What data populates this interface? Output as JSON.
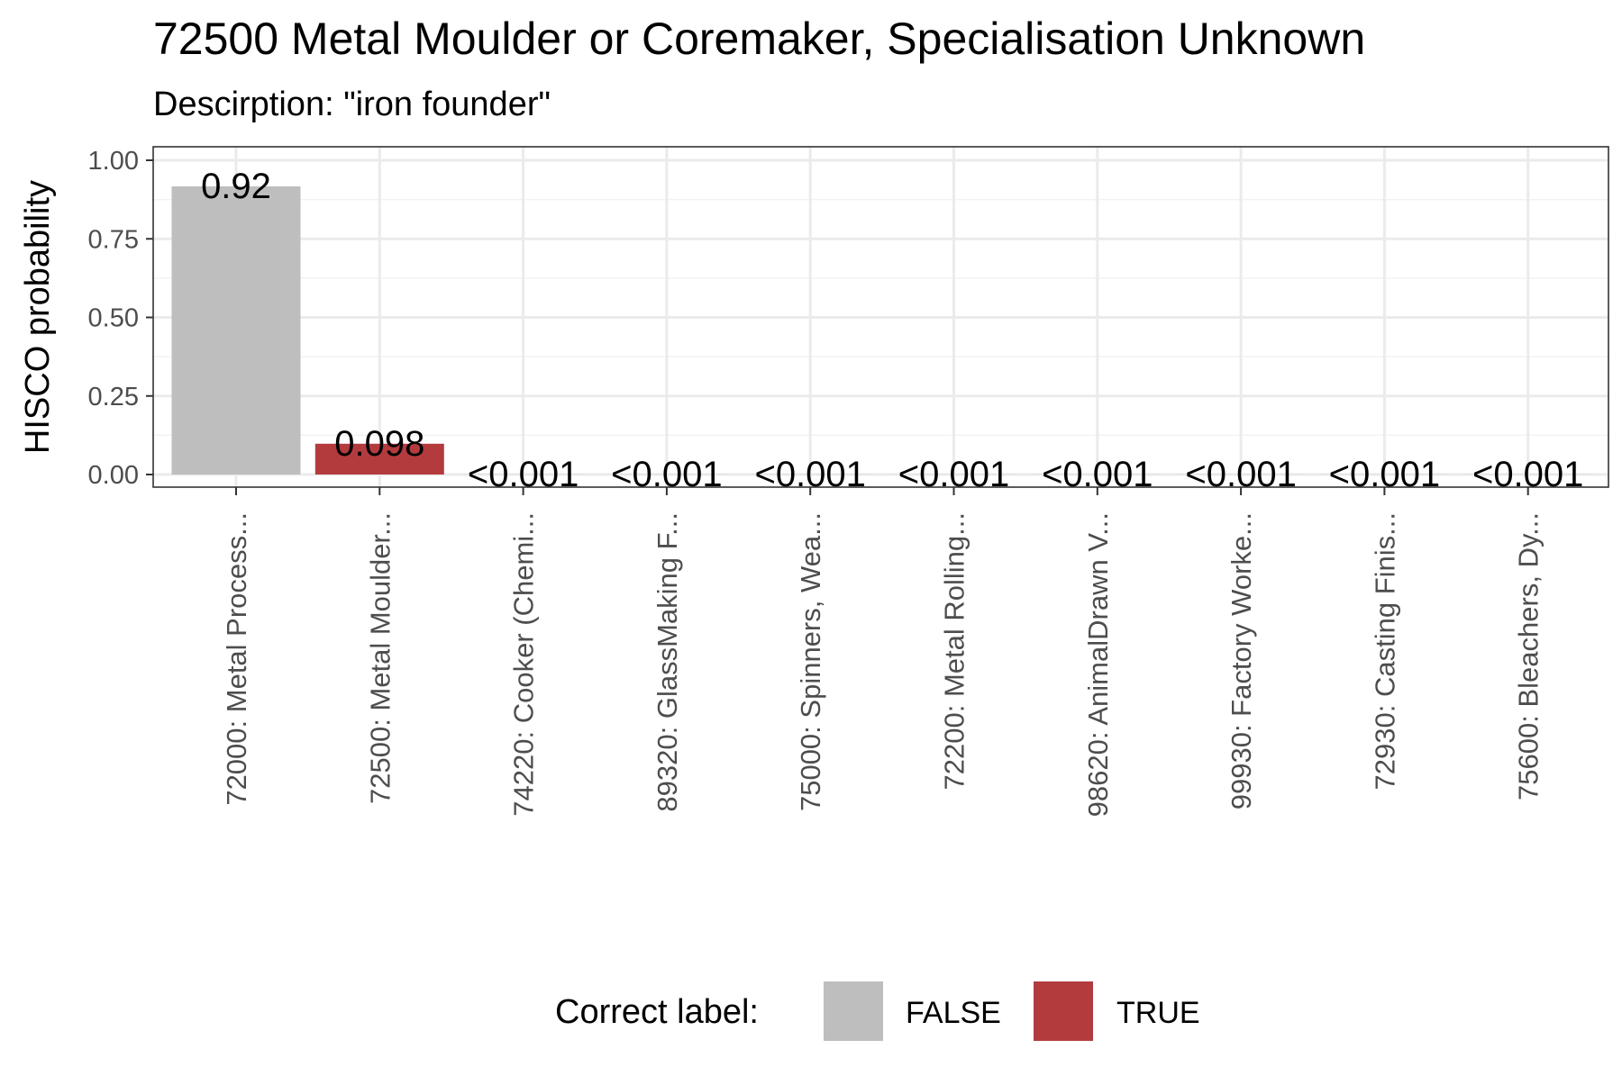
{
  "chart_data": {
    "type": "bar",
    "title": "72500 Metal Moulder or Coremaker, Specialisation Unknown",
    "subtitle": "Descirption: \"iron founder\"",
    "xlabel": "",
    "ylabel": "HISCO probability",
    "ylim": [
      0,
      1.04
    ],
    "yticks": [
      0.0,
      0.25,
      0.5,
      0.75,
      1.0
    ],
    "ytick_labels": [
      "0.00",
      "0.25",
      "0.50",
      "0.75",
      "1.00"
    ],
    "categories": [
      "72000: Metal Process...",
      "72500: Metal Moulder...",
      "74220: Cooker (Chemi...",
      "89320: GlassMaking F...",
      "75000: Spinners, Wea...",
      "72200: Metal Rolling...",
      "98620: AnimalDrawn V...",
      "99930: Factory Worke...",
      "72930: Casting Finis...",
      "75600: Bleachers, Dy..."
    ],
    "values": [
      0.917,
      0.098,
      0.0005,
      0.0005,
      0.0005,
      0.0005,
      0.0005,
      0.0005,
      0.0005,
      0.0005
    ],
    "data_labels": [
      "0.92",
      "0.098",
      "<0.001",
      "<0.001",
      "<0.001",
      "<0.001",
      "<0.001",
      "<0.001",
      "<0.001",
      "<0.001"
    ],
    "correct": [
      false,
      true,
      false,
      false,
      false,
      false,
      false,
      false,
      false,
      false
    ],
    "grid": true,
    "legend": {
      "title": "Correct label:",
      "position": "bottom",
      "entries": [
        {
          "label": "FALSE",
          "color": "#bebebe"
        },
        {
          "label": "TRUE",
          "color": "#b33b3e"
        }
      ]
    }
  }
}
